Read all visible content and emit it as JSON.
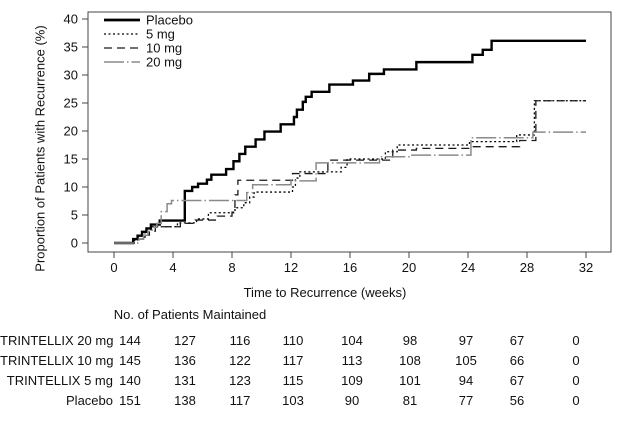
{
  "chart_data": {
    "type": "line",
    "subtype": "kaplan-meier-step",
    "title": "",
    "xlabel": "Time to Recurrence (weeks)",
    "ylabel": "Proportion of Patients with Recurrence (%)",
    "xlim": [
      0,
      32
    ],
    "ylim": [
      0,
      40
    ],
    "xticks": [
      0,
      4,
      8,
      12,
      16,
      20,
      24,
      28,
      32
    ],
    "yticks": [
      0,
      5,
      10,
      15,
      20,
      25,
      30,
      35,
      40
    ],
    "grid": false,
    "legend_position": "top-left",
    "series": [
      {
        "name": "Placebo",
        "style": "solid",
        "color": "#000000",
        "width": 2.4,
        "points": [
          [
            0,
            0
          ],
          [
            1.3,
            0.7
          ],
          [
            1.6,
            1.3
          ],
          [
            1.9,
            2.0
          ],
          [
            2.2,
            2.6
          ],
          [
            2.5,
            3.3
          ],
          [
            3.1,
            4.0
          ],
          [
            4.8,
            9.3
          ],
          [
            5.3,
            10.0
          ],
          [
            5.7,
            10.6
          ],
          [
            6.3,
            11.3
          ],
          [
            6.6,
            12.2
          ],
          [
            7.6,
            13.2
          ],
          [
            8.1,
            14.6
          ],
          [
            8.5,
            15.9
          ],
          [
            8.9,
            17.2
          ],
          [
            9.6,
            18.5
          ],
          [
            10.2,
            19.9
          ],
          [
            11.3,
            21.2
          ],
          [
            12.2,
            22.5
          ],
          [
            12.4,
            23.8
          ],
          [
            12.8,
            25.2
          ],
          [
            13.0,
            26.1
          ],
          [
            13.4,
            27.0
          ],
          [
            14.6,
            28.3
          ],
          [
            16.2,
            29.0
          ],
          [
            17.3,
            30.2
          ],
          [
            18.3,
            31.0
          ],
          [
            20.5,
            32.3
          ],
          [
            24.3,
            33.6
          ],
          [
            25.0,
            34.5
          ],
          [
            25.6,
            36.1
          ],
          [
            32,
            36.1
          ]
        ]
      },
      {
        "name": "5 mg",
        "style": "dotted",
        "color": "#000000",
        "width": 1.3,
        "points": [
          [
            0,
            0
          ],
          [
            1.4,
            0.7
          ],
          [
            2.1,
            2.1
          ],
          [
            2.5,
            2.9
          ],
          [
            4.3,
            3.6
          ],
          [
            5.6,
            4.3
          ],
          [
            6.4,
            5.4
          ],
          [
            8.2,
            6.3
          ],
          [
            8.8,
            7.2
          ],
          [
            9.2,
            8.2
          ],
          [
            9.5,
            9.1
          ],
          [
            12.1,
            10.0
          ],
          [
            12.3,
            11.6
          ],
          [
            12.6,
            12.7
          ],
          [
            15.4,
            13.5
          ],
          [
            15.8,
            15.0
          ],
          [
            18.4,
            16.3
          ],
          [
            19.2,
            17.5
          ],
          [
            24.1,
            18.1
          ],
          [
            27.3,
            19.3
          ],
          [
            28.5,
            25.4
          ],
          [
            32,
            25.4
          ]
        ]
      },
      {
        "name": "10 mg",
        "style": "dashed",
        "color": "#1a1a1a",
        "width": 1.3,
        "points": [
          [
            0,
            0
          ],
          [
            1.6,
            0.7
          ],
          [
            2.0,
            1.4
          ],
          [
            2.4,
            2.1
          ],
          [
            2.8,
            2.9
          ],
          [
            4.5,
            3.5
          ],
          [
            5.5,
            4.1
          ],
          [
            7.0,
            4.8
          ],
          [
            8.0,
            5.5
          ],
          [
            8.2,
            8.6
          ],
          [
            8.4,
            11.2
          ],
          [
            12.1,
            12.4
          ],
          [
            14.5,
            14.8
          ],
          [
            18.9,
            16.6
          ],
          [
            20.5,
            16.9
          ],
          [
            24.2,
            17.2
          ],
          [
            27.5,
            18.3
          ],
          [
            28.6,
            25.4
          ],
          [
            32,
            25.4
          ]
        ]
      },
      {
        "name": "20 mg",
        "style": "long-dash-dot",
        "color": "#8a8a8a",
        "width": 1.5,
        "points": [
          [
            0,
            0
          ],
          [
            1.7,
            0.7
          ],
          [
            2.0,
            1.4
          ],
          [
            2.3,
            2.1
          ],
          [
            2.6,
            2.8
          ],
          [
            2.9,
            3.5
          ],
          [
            3.2,
            5.6
          ],
          [
            3.6,
            7.0
          ],
          [
            3.9,
            7.6
          ],
          [
            9.0,
            9.0
          ],
          [
            9.4,
            10.4
          ],
          [
            12.0,
            11.1
          ],
          [
            13.7,
            14.3
          ],
          [
            18.0,
            15.4
          ],
          [
            20.2,
            15.7
          ],
          [
            24.2,
            18.8
          ],
          [
            28.4,
            19.8
          ],
          [
            32,
            19.8
          ]
        ]
      }
    ]
  },
  "risk_table": {
    "header": "No. of Patients Maintained",
    "weeks": [
      0,
      4,
      8,
      12,
      16,
      20,
      24,
      28,
      32
    ],
    "rows": [
      {
        "label": "TRINTELLIX 20 mg",
        "counts": [
          144,
          127,
          116,
          110,
          104,
          98,
          97,
          67,
          0
        ]
      },
      {
        "label": "TRINTELLIX 10 mg",
        "counts": [
          145,
          136,
          122,
          117,
          113,
          108,
          105,
          66,
          0
        ]
      },
      {
        "label": "TRINTELLIX 5 mg",
        "counts": [
          140,
          131,
          123,
          115,
          109,
          101,
          94,
          67,
          0
        ]
      },
      {
        "label": "Placebo",
        "counts": [
          151,
          138,
          117,
          103,
          90,
          81,
          77,
          56,
          0
        ]
      }
    ]
  }
}
